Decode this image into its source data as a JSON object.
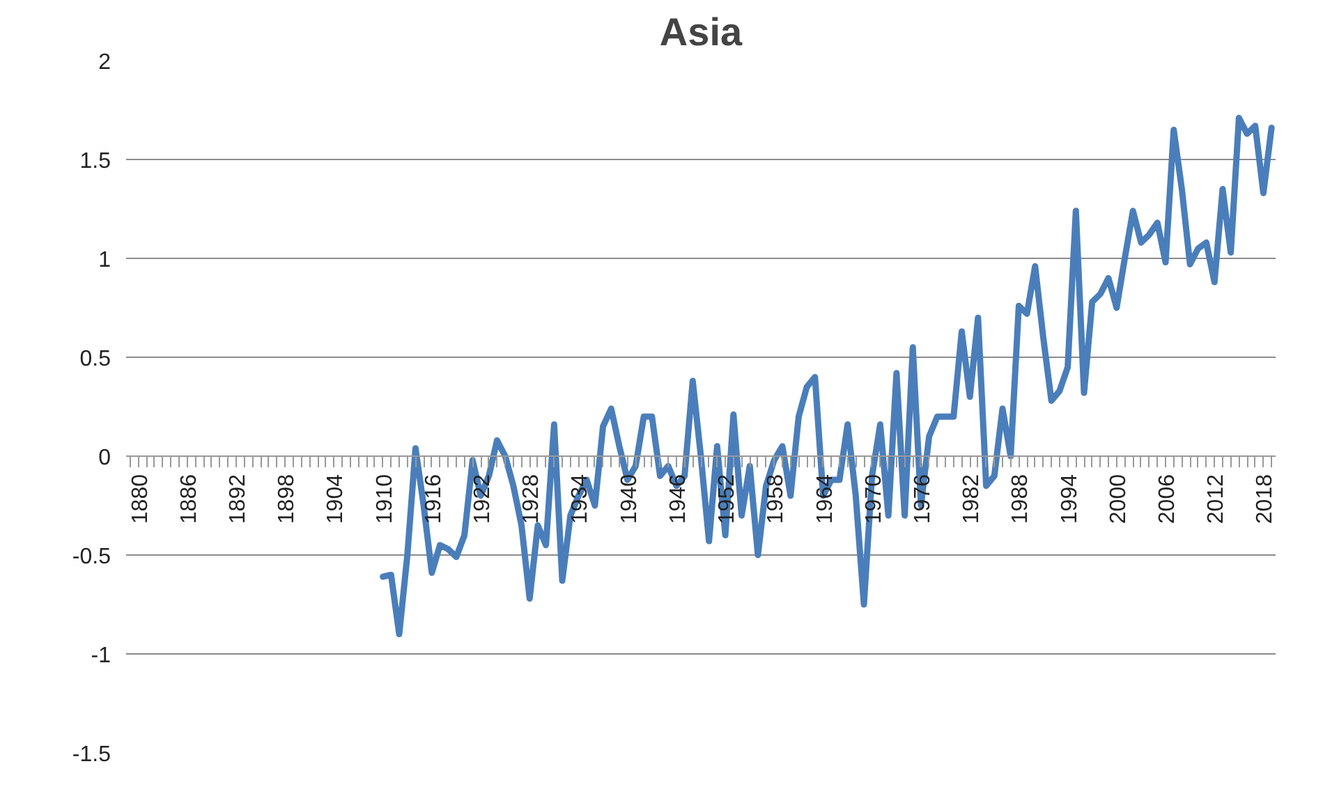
{
  "chart_data": {
    "type": "line",
    "title": "Asia",
    "x": [
      1910,
      1911,
      1912,
      1913,
      1914,
      1915,
      1916,
      1917,
      1918,
      1919,
      1920,
      1921,
      1922,
      1923,
      1924,
      1925,
      1926,
      1927,
      1928,
      1929,
      1930,
      1931,
      1932,
      1933,
      1934,
      1935,
      1936,
      1937,
      1938,
      1939,
      1940,
      1941,
      1942,
      1943,
      1944,
      1945,
      1946,
      1947,
      1948,
      1949,
      1950,
      1951,
      1952,
      1953,
      1954,
      1955,
      1956,
      1957,
      1958,
      1959,
      1960,
      1961,
      1962,
      1963,
      1964,
      1965,
      1966,
      1967,
      1968,
      1969,
      1970,
      1971,
      1972,
      1973,
      1974,
      1975,
      1976,
      1977,
      1978,
      1979,
      1980,
      1981,
      1982,
      1983,
      1984,
      1985,
      1986,
      1987,
      1988,
      1989,
      1990,
      1991,
      1992,
      1993,
      1994,
      1995,
      1996,
      1997,
      1998,
      1999,
      2000,
      2001,
      2002,
      2003,
      2004,
      2005,
      2006,
      2007,
      2008,
      2009,
      2010,
      2011,
      2012,
      2013,
      2014,
      2015,
      2016,
      2017,
      2018,
      2019
    ],
    "series": [
      {
        "color": "#4a7ebb",
        "values": [
          -0.61,
          -0.6,
          -0.9,
          -0.5,
          0.04,
          -0.25,
          -0.59,
          -0.45,
          -0.47,
          -0.51,
          -0.4,
          -0.02,
          -0.2,
          -0.1,
          0.08,
          0,
          -0.15,
          -0.35,
          -0.72,
          -0.35,
          -0.45,
          0.16,
          -0.63,
          -0.3,
          -0.2,
          -0.12,
          -0.25,
          0.15,
          0.24,
          0.05,
          -0.12,
          -0.05,
          0.2,
          0.2,
          -0.1,
          -0.05,
          -0.15,
          -0.1,
          0.38,
          0,
          -0.43,
          0.05,
          -0.4,
          0.21,
          -0.3,
          -0.05,
          -0.5,
          -0.15,
          -0.02,
          0.05,
          -0.2,
          0.2,
          0.35,
          0.4,
          -0.2,
          -0.12,
          -0.12,
          0.16,
          -0.2,
          -0.75,
          -0.1,
          0.16,
          -0.3,
          0.42,
          -0.3,
          0.55,
          -0.25,
          0.1,
          0.2,
          0.2,
          0.2,
          0.63,
          0.3,
          0.7,
          -0.15,
          -0.1,
          0.24,
          0,
          0.76,
          0.72,
          0.96,
          0.6,
          0.28,
          0.33,
          0.45,
          1.24,
          0.32,
          0.78,
          0.82,
          0.9,
          0.75,
          1.0,
          1.24,
          1.08,
          1.12,
          1.18,
          0.98,
          1.65,
          1.35,
          0.97,
          1.05,
          1.08,
          0.88,
          1.35,
          1.03,
          1.71,
          1.63,
          1.67,
          1.33,
          1.66
        ]
      }
    ],
    "xlim": [
      1878.5,
      2019.5
    ],
    "xticks": [
      1880,
      1886,
      1892,
      1898,
      1904,
      1910,
      1916,
      1922,
      1928,
      1934,
      1940,
      1946,
      1952,
      1958,
      1964,
      1970,
      1976,
      1982,
      1988,
      1994,
      2000,
      2006,
      2012,
      2018
    ],
    "ylim": [
      -1.5,
      2
    ],
    "yticks": [
      -1.5,
      -1,
      -0.5,
      0,
      0.5,
      1,
      1.5,
      2
    ],
    "grid": "y",
    "marker": "none",
    "line_style": "solid"
  }
}
